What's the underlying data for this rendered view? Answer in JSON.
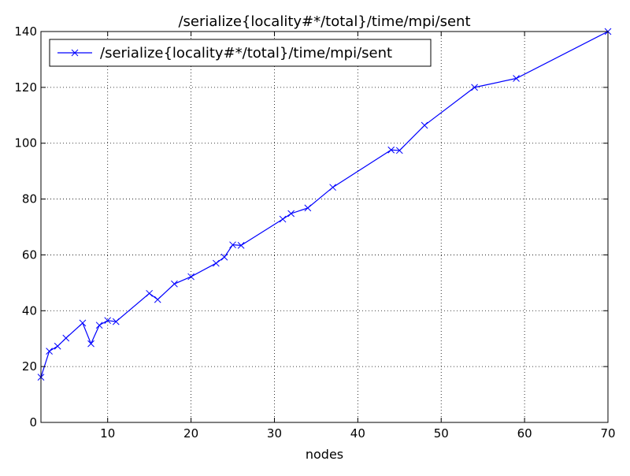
{
  "chart_data": {
    "type": "line",
    "title": "/serialize{locality#*/total}/time/mpi/sent",
    "xlabel": "nodes",
    "ylabel": "",
    "xlim": [
      2,
      70
    ],
    "ylim": [
      0,
      140
    ],
    "x_ticks": [
      10,
      20,
      30,
      40,
      50,
      60,
      70
    ],
    "y_ticks": [
      0,
      20,
      40,
      60,
      80,
      100,
      120,
      140
    ],
    "grid": true,
    "legend_position": "top-left",
    "series": [
      {
        "name": "/serialize{locality#*/total}/time/mpi/sent",
        "color": "#0000ff",
        "marker": "x",
        "x": [
          2,
          3,
          4,
          5,
          7,
          8,
          9,
          10,
          11,
          15,
          16,
          18,
          20,
          23,
          24,
          25,
          26,
          31,
          32,
          34,
          37,
          44,
          45,
          48,
          54,
          59,
          70
        ],
        "y": [
          16.2,
          25.5,
          27.3,
          30.2,
          35.6,
          28.2,
          34.8,
          36.5,
          36.1,
          46.2,
          44.0,
          49.6,
          52.2,
          57.0,
          59.2,
          63.6,
          63.4,
          72.8,
          74.8,
          76.8,
          84.2,
          97.6,
          97.4,
          106.4,
          120.0,
          123.2,
          140.0
        ]
      }
    ]
  }
}
